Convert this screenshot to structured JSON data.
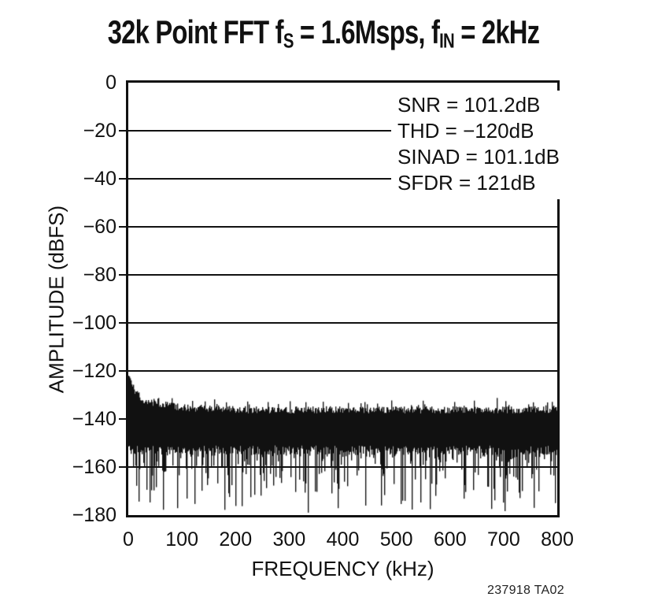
{
  "page": {
    "background": "#ffffff",
    "ink": "#111111"
  },
  "title": {
    "text": "32k Point FFT fS = 1.6Msps, fIN = 2kHz",
    "segments": [
      {
        "t": "32k Point FFT f"
      },
      {
        "t": "S",
        "sub": true
      },
      {
        "t": " = 1.6Msps, f"
      },
      {
        "t": "IN",
        "sub": true
      },
      {
        "t": " = 2kHz"
      }
    ]
  },
  "footer": {
    "doc_code": "237918 TA02"
  },
  "chart_data": {
    "type": "line",
    "subtype": "fft_spectrum_noise_floor",
    "title": "32k Point FFT fS = 1.6Msps, fIN = 2kHz",
    "xlabel": "FREQUENCY (kHz)",
    "ylabel": "AMPLITUDE (dBFS)",
    "xlim": [
      0,
      800
    ],
    "ylim": [
      -180,
      0
    ],
    "x_ticks": [
      "0",
      "100",
      "200",
      "300",
      "400",
      "500",
      "600",
      "700",
      "800"
    ],
    "y_ticks": [
      "0",
      "−20",
      "−40",
      "−60",
      "−80",
      "−100",
      "−120",
      "−140",
      "−160",
      "−180"
    ],
    "grid": true,
    "grid_step_db": 20,
    "legend_position": "none",
    "annotations": [
      "SNR = 101.2dB",
      "THD = −120dB",
      "SINAD = 101.1dB",
      "SFDR = 121dB"
    ],
    "measurements": {
      "snr_db": 101.2,
      "thd_db": -120,
      "sinad_db": 101.1,
      "sfdr_db": 121
    },
    "signal": {
      "fft_points": 32768,
      "sample_rate_msps": 1.6,
      "f_in_khz": 2
    },
    "noise_floor": {
      "top_envelope": {
        "x_khz": [
          0,
          5,
          12,
          25,
          50,
          100,
          200,
          400,
          800
        ],
        "dbfs": [
          -122,
          -126,
          -129,
          -132,
          -134,
          -135.5,
          -136.5,
          -136.5,
          -136.5
        ]
      },
      "dense_band_dbfs": [
        -138,
        -151
      ],
      "typical_bottom_dbfs": -158,
      "spike_min_dbfs": -178,
      "seed": 20240613
    }
  }
}
